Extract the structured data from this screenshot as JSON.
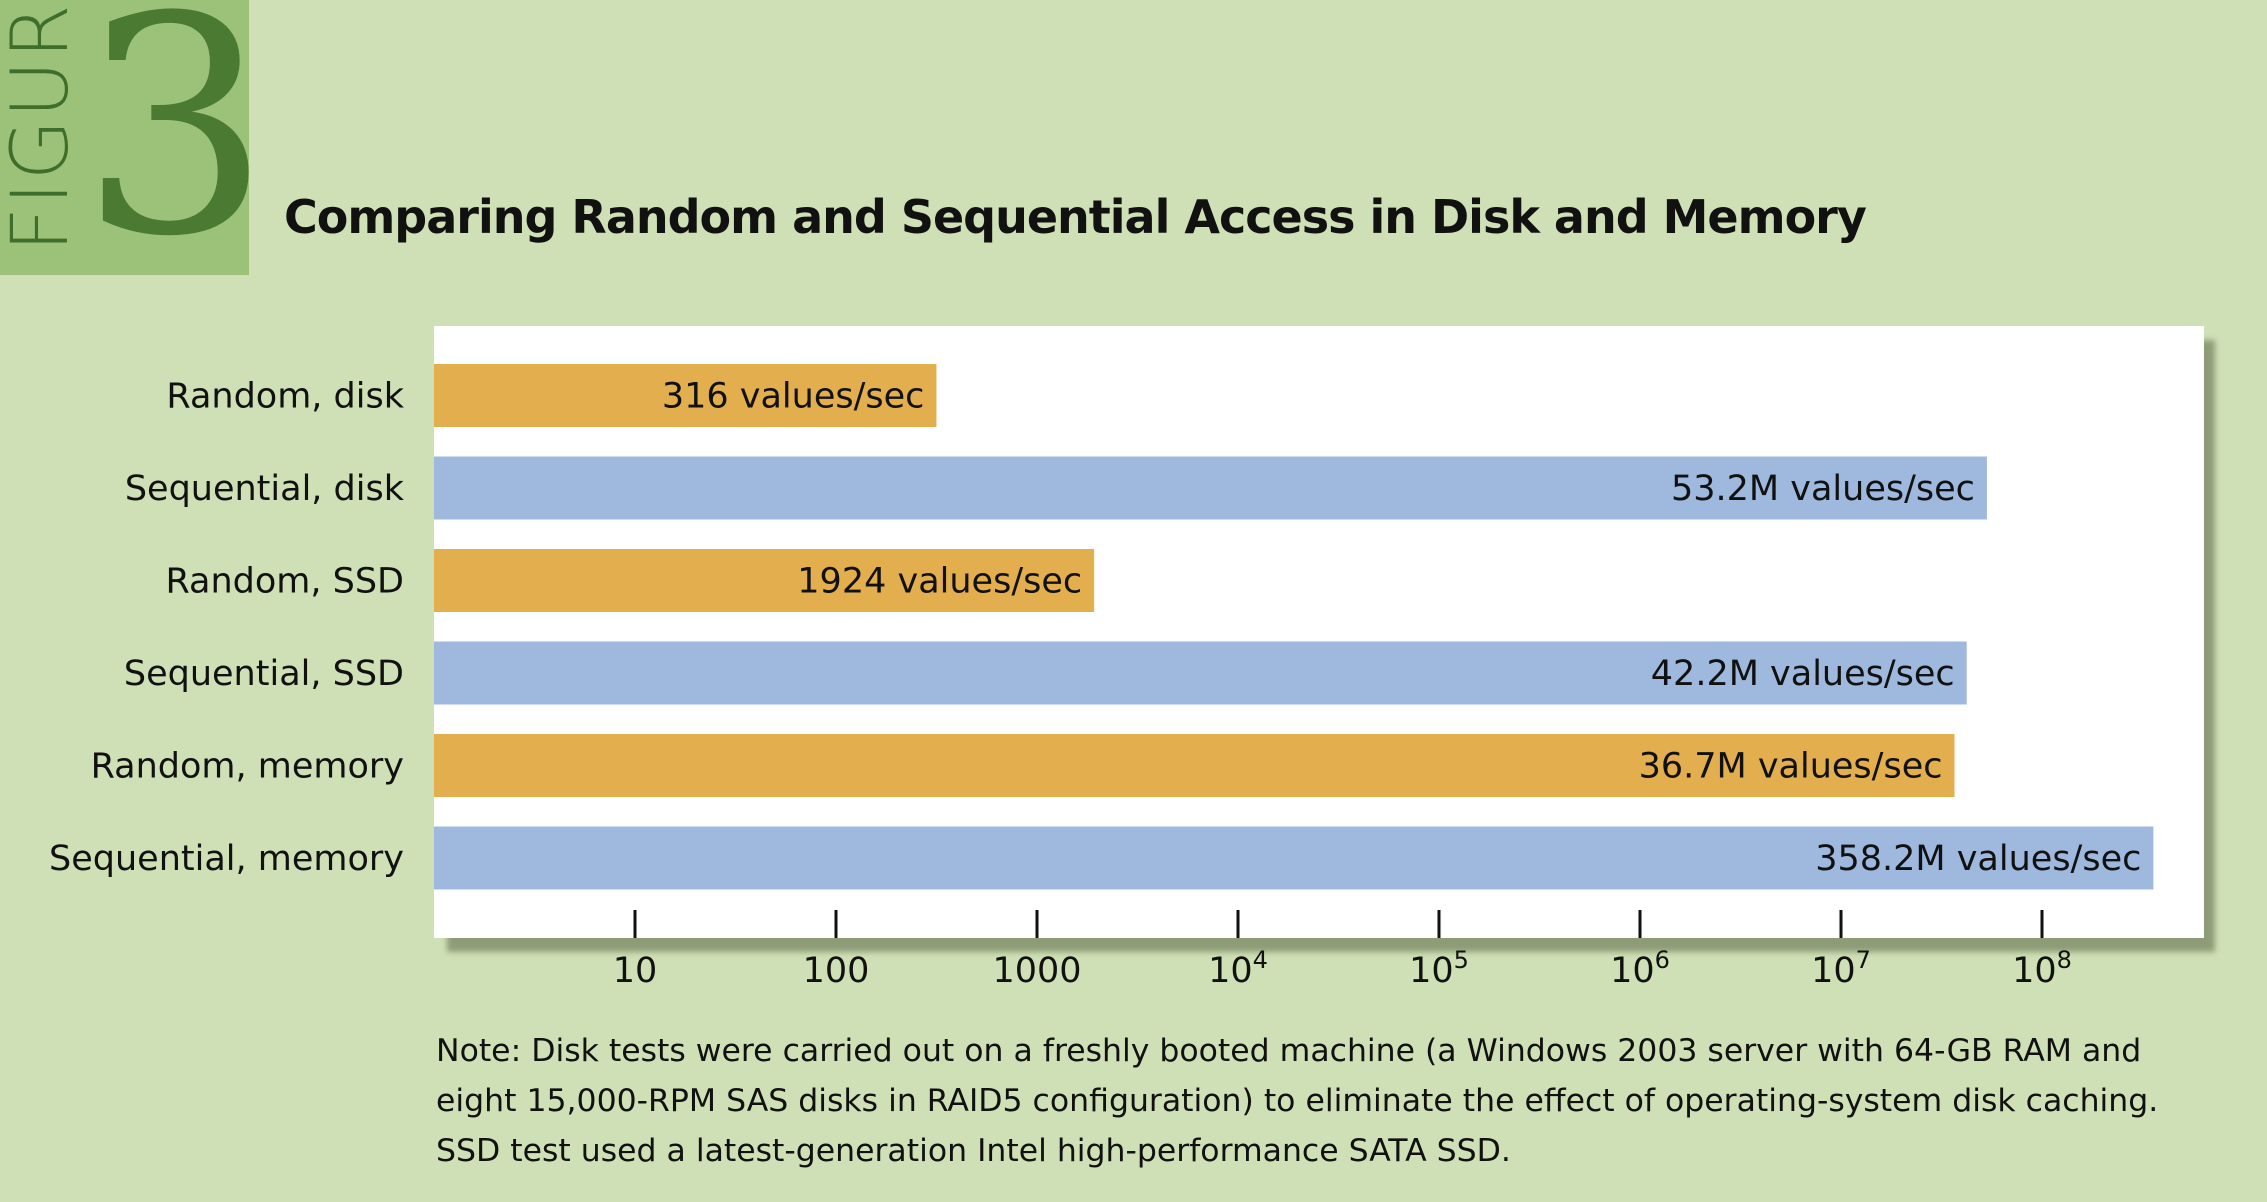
{
  "figure": {
    "word": "FIGURE",
    "number": "3"
  },
  "title": "Comparing Random and Sequential Access in Disk and Memory",
  "colors": {
    "random": "#e2ae4e",
    "sequential": "#9fb8de",
    "panel": "#ffffff",
    "background": "#d0e0b6"
  },
  "chart_data": {
    "type": "bar",
    "orientation": "horizontal",
    "title": "Comparing Random and Sequential Access in Disk and Memory",
    "xscale": "log",
    "xlim": [
      1,
      1000000000
    ],
    "categories": [
      "Random, disk",
      "Sequential, disk",
      "Random, SSD",
      "Sequential, SSD",
      "Random, memory",
      "Sequential, memory"
    ],
    "values": [
      316,
      53200000,
      1924,
      42200000,
      36700000,
      358200000
    ],
    "value_labels": [
      "316 values/sec",
      "53.2M values/sec",
      "1924 values/sec",
      "42.2M values/sec",
      "36.7M values/sec",
      "358.2M values/sec"
    ],
    "series_kind": [
      "random",
      "sequential",
      "random",
      "sequential",
      "random",
      "sequential"
    ],
    "ticks": [
      {
        "value": 10,
        "label": "10",
        "exp": ""
      },
      {
        "value": 100,
        "label": "100",
        "exp": ""
      },
      {
        "value": 1000,
        "label": "1000",
        "exp": ""
      },
      {
        "value": 10000,
        "label": "10",
        "exp": "4"
      },
      {
        "value": 100000,
        "label": "10",
        "exp": "5"
      },
      {
        "value": 1000000,
        "label": "10",
        "exp": "6"
      },
      {
        "value": 10000000,
        "label": "10",
        "exp": "7"
      },
      {
        "value": 100000000,
        "label": "10",
        "exp": "8"
      }
    ]
  },
  "note": {
    "lines": [
      "Note: Disk tests were carried out on a freshly booted machine (a Windows 2003 server with 64-GB RAM and",
      "eight 15,000-RPM SAS disks in RAID5 configuration) to eliminate the effect of operating-system disk caching.",
      "SSD test used a latest-generation Intel high-performance SATA SSD."
    ]
  }
}
